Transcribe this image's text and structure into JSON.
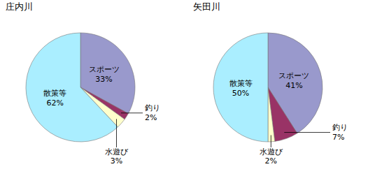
{
  "chart_data": [
    {
      "type": "pie",
      "title": "庄内川",
      "categories": [
        "スポーツ",
        "釣り",
        "水遊び",
        "散策等"
      ],
      "values": [
        33,
        2,
        3,
        62
      ],
      "value_labels": [
        "33%",
        "2%",
        "3%",
        "62%"
      ],
      "colors": [
        "#9999cc",
        "#993366",
        "#ffffcc",
        "#aaeeff"
      ],
      "data_labels": true
    },
    {
      "type": "pie",
      "title": "矢田川",
      "categories": [
        "スポーツ",
        "釣り",
        "水遊び",
        "散策等"
      ],
      "values": [
        41,
        7,
        2,
        50
      ],
      "value_labels": [
        "41%",
        "7%",
        "2%",
        "50%"
      ],
      "colors": [
        "#9999cc",
        "#993366",
        "#ffffcc",
        "#aaeeff"
      ],
      "data_labels": true
    }
  ]
}
